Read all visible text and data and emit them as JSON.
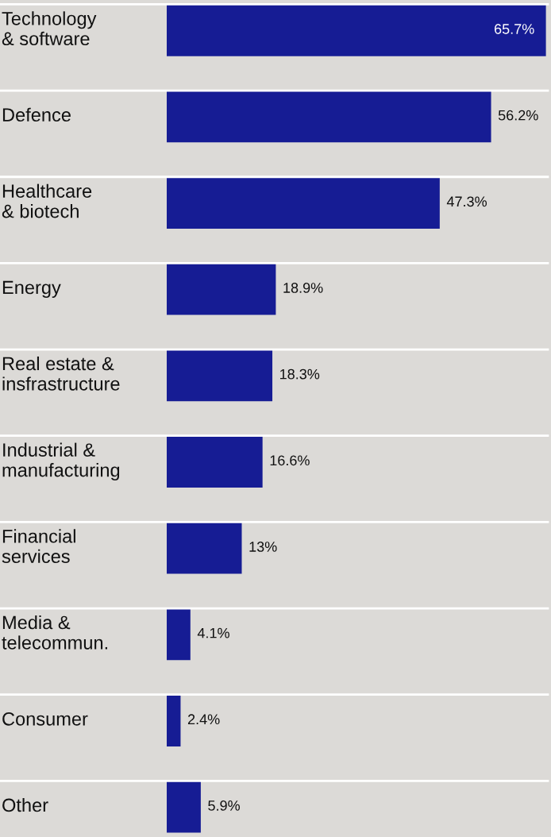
{
  "chart_data": {
    "type": "bar",
    "orientation": "horizontal",
    "categories": [
      "Technology\n& software",
      "Defence",
      "Healthcare\n& biotech",
      "Energy",
      "Real estate &\ninsfrastructure",
      "Industrial &\nmanufacturing",
      "Financial\nservices",
      "Media &\ntelecommun.",
      "Consumer",
      "Other"
    ],
    "values": [
      65.7,
      56.2,
      47.3,
      18.9,
      18.3,
      16.6,
      13,
      4.1,
      2.4,
      5.9
    ],
    "value_labels": [
      "65.7%",
      "56.2%",
      "47.3%",
      "18.9%",
      "18.3%",
      "16.6%",
      "13%",
      "4.1%",
      "2.4%",
      "5.9%"
    ],
    "color": "#161c94",
    "grid": "y",
    "tick_labels": "y"
  }
}
